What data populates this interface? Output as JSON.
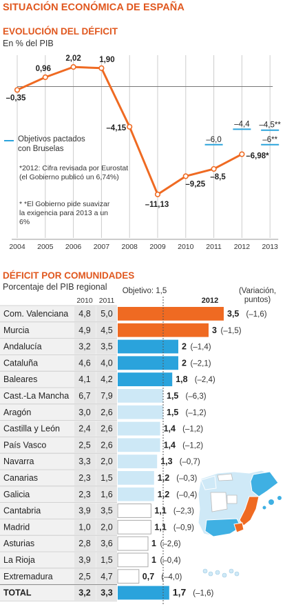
{
  "page_title": "SITUACIÓN ECONÓMICA DE ESPAÑA",
  "colors": {
    "accent": "#e0571e",
    "line": "#ef6a22",
    "blue_dark": "#2aa3dc",
    "blue_light": "#cde8f6",
    "white_bar": "#ffffff",
    "grid": "#cccccc",
    "map_dark": "#3fb0e3",
    "map_light": "#cfe9f7"
  },
  "deficit_chart": {
    "title": "EVOLUCIÓN DEL DÉFICIT",
    "unit": "En % del PIB",
    "legend": "Objetivos pactados con Bruselas",
    "note1": "*2012: Cifra revisada por Eurostat (el Gobierno publicó un 6,74%)",
    "note2": "* *El Gobierno pide suavizar la exigencia para 2013 a un 6%"
  },
  "chart_data": [
    {
      "type": "line",
      "x": [
        "2004",
        "2005",
        "2006",
        "2007",
        "2008",
        "2009",
        "2010",
        "2011",
        "2012",
        "2013"
      ],
      "series": [
        {
          "values": [
            -0.35,
            0.96,
            2.02,
            1.9,
            -4.15,
            -11.13,
            -9.25,
            -8.5,
            -6.98,
            null
          ],
          "labels": [
            "–0,35",
            "0,96",
            "2,02",
            "1,90",
            "–4,15",
            "–11,13",
            "–9,25",
            "–8,5",
            "–6,98*",
            ""
          ]
        },
        {
          "name": "Objetivos pactados con Bruselas",
          "values": [
            null,
            null,
            null,
            null,
            null,
            null,
            null,
            -6.0,
            -4.4,
            -4.5
          ],
          "labels": [
            "",
            "",
            "",
            "",
            "",
            "",
            "",
            "–6,0",
            "–4,4",
            "–4,5**"
          ]
        },
        {
          "values": [
            null,
            null,
            null,
            null,
            null,
            null,
            null,
            null,
            null,
            -6.0
          ],
          "labels": [
            "",
            "",
            "",
            "",
            "",
            "",
            "",
            "",
            "",
            "–6**"
          ]
        }
      ],
      "title": "EVOLUCIÓN DEL DÉFICIT",
      "ylabel": "En % del PIB",
      "ylim": [
        -12.5,
        3
      ],
      "grid": "vertical"
    },
    {
      "type": "bar",
      "title": "DÉFICIT POR COMUNIDADES",
      "subtitle": "Porcentaje del PIB regional",
      "col_2010": "2010",
      "col_2011": "2011",
      "col_2012": "2012",
      "variation_header": "(Variación, puntos)",
      "objective_label": "Objetivo: 1,5",
      "objective": 1.5,
      "xlim": [
        0,
        3.5
      ],
      "rows": [
        {
          "name": "Com. Valenciana",
          "v2010": "4,8",
          "v2011": "5,0",
          "v2012": 3.5,
          "v2012_label": "3,5",
          "variation": "(–1,6)",
          "color": "orange"
        },
        {
          "name": "Murcia",
          "v2010": "4,9",
          "v2011": "4,5",
          "v2012": 3,
          "v2012_label": "3",
          "variation": "(–1,5)",
          "color": "orange"
        },
        {
          "name": "Andalucía",
          "v2010": "3,2",
          "v2011": "3,5",
          "v2012": 2,
          "v2012_label": "2",
          "variation": "(–1,4)",
          "color": "dark"
        },
        {
          "name": "Cataluña",
          "v2010": "4,6",
          "v2011": "4,0",
          "v2012": 2,
          "v2012_label": "2",
          "variation": "(–2,1)",
          "color": "dark"
        },
        {
          "name": "Baleares",
          "v2010": "4,1",
          "v2011": "4,2",
          "v2012": 1.8,
          "v2012_label": "1,8",
          "variation": "(–2,4)",
          "color": "dark"
        },
        {
          "name": "Cast.-La Mancha",
          "v2010": "6,7",
          "v2011": "7,9",
          "v2012": 1.5,
          "v2012_label": "1,5",
          "variation": "(–6,3)",
          "color": "light"
        },
        {
          "name": "Aragón",
          "v2010": "3,0",
          "v2011": "2,6",
          "v2012": 1.5,
          "v2012_label": "1,5",
          "variation": "(–1,2)",
          "color": "light"
        },
        {
          "name": "Castilla y León",
          "v2010": "2,4",
          "v2011": "2,6",
          "v2012": 1.4,
          "v2012_label": "1,4",
          "variation": "(–1,2)",
          "color": "light"
        },
        {
          "name": "País Vasco",
          "v2010": "2,5",
          "v2011": "2,6",
          "v2012": 1.4,
          "v2012_label": "1,4",
          "variation": "(–1,2)",
          "color": "light"
        },
        {
          "name": " Navarra",
          "v2010": "3,3",
          "v2011": "2,0",
          "v2012": 1.3,
          "v2012_label": "1,3",
          "variation": "(–0,7)",
          "color": "light"
        },
        {
          "name": "Canarias",
          "v2010": "2,3",
          "v2011": "1,5",
          "v2012": 1.2,
          "v2012_label": "1,2",
          "variation": "(–0,3)",
          "color": "light"
        },
        {
          "name": "Galicia",
          "v2010": "2,3",
          "v2011": "1,6",
          "v2012": 1.2,
          "v2012_label": "1,2",
          "variation": "(–0,4)",
          "color": "light"
        },
        {
          "name": "Cantabria",
          "v2010": "3,9",
          "v2011": "3,5",
          "v2012": 1.1,
          "v2012_label": "1,1",
          "variation": "(–2,3)",
          "color": "white"
        },
        {
          "name": "Madrid",
          "v2010": "1,0",
          "v2011": "2,0",
          "v2012": 1.1,
          "v2012_label": "1,1",
          "variation": "(–0,9)",
          "color": "white"
        },
        {
          "name": "Asturias",
          "v2010": "2,8",
          "v2011": "3,6",
          "v2012": 1,
          "v2012_label": "1",
          "variation": "(–2,6)",
          "color": "white"
        },
        {
          "name": "La Rioja",
          "v2010": "3,9",
          "v2011": "1,5",
          "v2012": 1,
          "v2012_label": "1",
          "variation": "(–0,4)",
          "color": "white"
        },
        {
          "name": "Extremadura",
          "v2010": "2,5",
          "v2011": "4,7",
          "v2012": 0.7,
          "v2012_label": "0,7",
          "variation": "(–4,0)",
          "color": "white"
        },
        {
          "name": "TOTAL",
          "v2010": "3,2",
          "v2011": "3,3",
          "v2012": 1.7,
          "v2012_label": "1,7",
          "variation": "(–1,6)",
          "color": "dark",
          "total": true
        }
      ]
    }
  ]
}
